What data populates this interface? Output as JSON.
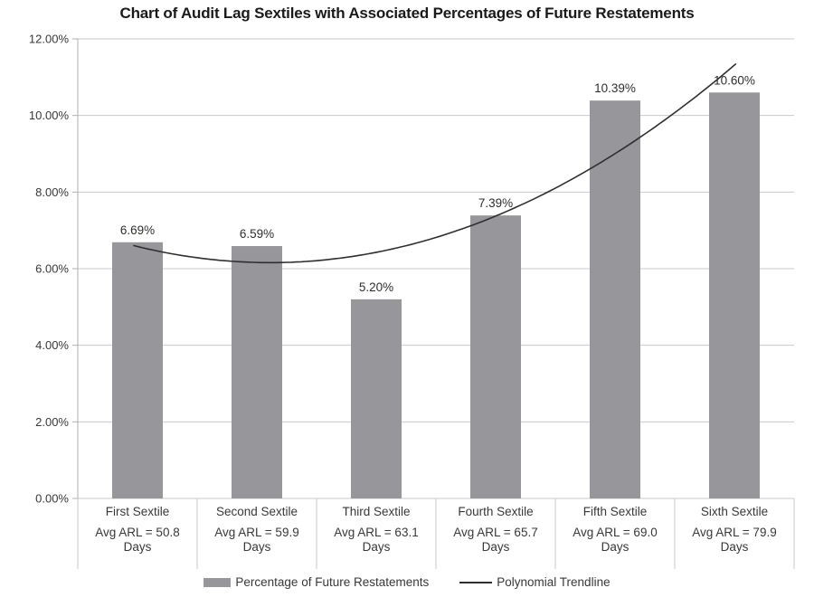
{
  "chart_data": {
    "type": "bar",
    "title": "Chart of Audit Lag Sextiles with Associated Percentages of Future Restatements",
    "categories": [
      {
        "label": "First Sextile",
        "sublabel": "Avg ARL = 50.8 Days"
      },
      {
        "label": "Second Sextile",
        "sublabel": "Avg ARL = 59.9 Days"
      },
      {
        "label": "Third Sextile",
        "sublabel": "Avg ARL = 63.1 Days"
      },
      {
        "label": "Fourth Sextile",
        "sublabel": "Avg ARL = 65.7 Days"
      },
      {
        "label": "Fifth Sextile",
        "sublabel": "Avg ARL = 69.0 Days"
      },
      {
        "label": "Sixth Sextile",
        "sublabel": "Avg ARL = 79.9 Days"
      }
    ],
    "series": [
      {
        "name": "Percentage of Future Restatements",
        "type": "bar",
        "values": [
          6.69,
          6.59,
          5.2,
          7.39,
          10.39,
          10.6
        ],
        "labels": [
          "6.69%",
          "6.59%",
          "5.20%",
          "7.39%",
          "10.39%",
          "10.60%"
        ]
      }
    ],
    "trendline": {
      "name": "Polynomial Trendline",
      "type": "line",
      "values_at_sextiles": [
        6.58,
        6.16,
        6.43,
        7.37,
        9.0,
        11.31
      ],
      "poly_coeffs": [
        7.678,
        -1.44,
        0.341
      ],
      "x_range": [
        0.97,
        6.04
      ]
    },
    "y_axis": {
      "min": 0,
      "max": 12,
      "ticks": [
        {
          "value": 0,
          "label": "0.00%"
        },
        {
          "value": 2,
          "label": "2.00%"
        },
        {
          "value": 4,
          "label": "4.00%"
        },
        {
          "value": 6,
          "label": "6.00%"
        },
        {
          "value": 8,
          "label": "8.00%"
        },
        {
          "value": 10,
          "label": "10.00%"
        },
        {
          "value": 12,
          "label": "12.00%"
        }
      ]
    },
    "grid": true,
    "legend_position": "bottom",
    "colors": {
      "bar": "#97979B",
      "trendline": "#2F2F2F",
      "grid": "#C9C9C9",
      "axis": "#AFAFAF",
      "label_text": "#383838",
      "title_text": "#1A1A1A"
    }
  }
}
